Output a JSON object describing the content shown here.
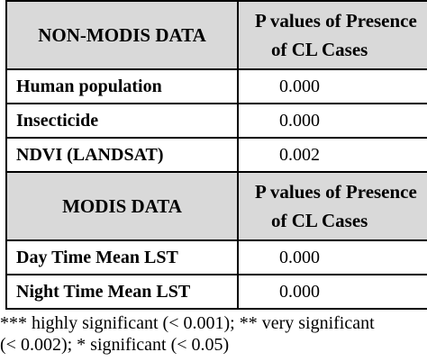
{
  "table": {
    "sections": [
      {
        "header": {
          "left": "NON-MODIS DATA",
          "right_line1": "P values of Presence",
          "right_line2": "of CL Cases"
        },
        "rows": [
          {
            "label": "Human population",
            "value": "0.000"
          },
          {
            "label": "Insecticide",
            "value": "0.000"
          },
          {
            "label": "NDVI (LANDSAT)",
            "value": "0.002"
          }
        ]
      },
      {
        "header": {
          "left": "MODIS DATA",
          "right_line1": "P values of Presence",
          "right_line2": "of CL Cases"
        },
        "rows": [
          {
            "label": "Day Time Mean LST",
            "value": "0.000"
          },
          {
            "label": "Night Time Mean LST",
            "value": "0.000"
          }
        ]
      }
    ],
    "colors": {
      "header_bg": "#d9d9d9",
      "border": "#000000"
    }
  },
  "footnote": {
    "line1": "*** highly significant (< 0.001); ** very significant",
    "line2": "(< 0.002); * significant (< 0.05)"
  }
}
